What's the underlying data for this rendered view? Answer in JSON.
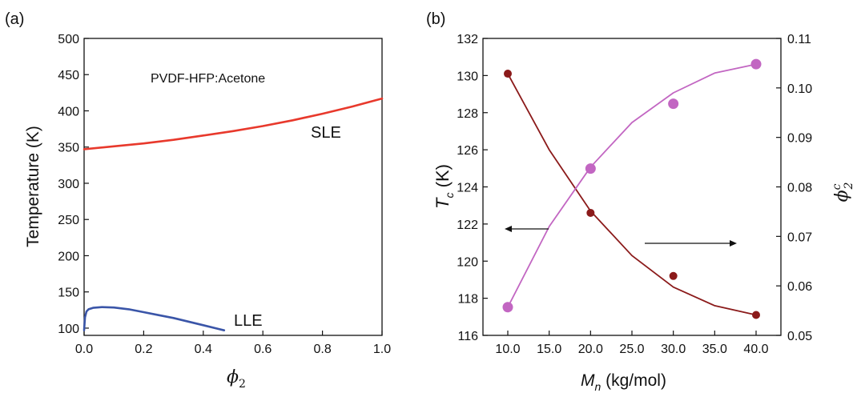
{
  "chart_data": [
    {
      "type": "line",
      "panel_label": "(a)",
      "annotation": "PVDF-HFP:Acetone",
      "xlabel": {
        "symbol": "ϕ",
        "sub": "2"
      },
      "ylabel": "Temperature (K)",
      "xlim": [
        0.0,
        1.0
      ],
      "ylim": [
        90,
        500
      ],
      "x_ticks": [
        "0.0",
        "0.2",
        "0.4",
        "0.6",
        "0.8",
        "1.0"
      ],
      "y_ticks": [
        "100",
        "150",
        "200",
        "250",
        "300",
        "350",
        "400",
        "450",
        "500"
      ],
      "colors": {
        "SLE": "#e8392c",
        "LLE": "#3a55a8"
      },
      "series": [
        {
          "name": "SLE",
          "x": [
            0.0,
            0.1,
            0.2,
            0.3,
            0.4,
            0.5,
            0.6,
            0.7,
            0.8,
            0.9,
            1.0
          ],
          "y": [
            347,
            351,
            355,
            360,
            366,
            372,
            379,
            387,
            396,
            406,
            417
          ]
        },
        {
          "name": "LLE",
          "x": [
            0.0,
            0.003,
            0.008,
            0.015,
            0.03,
            0.06,
            0.1,
            0.15,
            0.2,
            0.25,
            0.3,
            0.35,
            0.4,
            0.45,
            0.47
          ],
          "y": [
            97,
            115,
            123,
            126,
            128,
            129,
            128.5,
            126,
            122,
            118,
            114,
            109,
            104,
            99,
            97
          ]
        }
      ]
    },
    {
      "type": "scatter",
      "panel_label": "(b)",
      "xlabel": {
        "symbol": "M",
        "sub": "n",
        "unit": " (kg/mol)"
      },
      "ylabel_left": {
        "symbol": "T",
        "sub": "c",
        "unit": " (K)"
      },
      "ylabel_right": {
        "symbol": "ϕ",
        "sub": "2",
        "sup": "c"
      },
      "xlim": [
        7.0,
        43.0
      ],
      "ylim_left": [
        116,
        132
      ],
      "ylim_right": [
        0.05,
        0.11
      ],
      "x_ticks": [
        "10.0",
        "15.0",
        "20.0",
        "25.0",
        "30.0",
        "35.0",
        "40.0"
      ],
      "y_ticks_left": [
        "116",
        "118",
        "120",
        "122",
        "124",
        "126",
        "128",
        "130",
        "132"
      ],
      "y_ticks_right": [
        "0.05",
        "0.06",
        "0.07",
        "0.08",
        "0.09",
        "0.10",
        "0.11"
      ],
      "colors": {
        "Tc": "#8b1a1a",
        "phi": "#c266c2"
      },
      "series": [
        {
          "axis": "left",
          "x": [
            10,
            20,
            30,
            40
          ],
          "y": [
            130.1,
            122.6,
            119.2,
            117.1
          ],
          "fit": [
            [
              10,
              130.1
            ],
            [
              15,
              126.0
            ],
            [
              20,
              122.7
            ],
            [
              25,
              120.3
            ],
            [
              30,
              118.6
            ],
            [
              35,
              117.6
            ],
            [
              40,
              117.1
            ]
          ]
        },
        {
          "axis": "right",
          "x": [
            10,
            20,
            30,
            40
          ],
          "y": [
            0.0557,
            0.0837,
            0.0968,
            0.1048
          ],
          "fit": [
            [
              10,
              0.0557
            ],
            [
              15,
              0.072
            ],
            [
              20,
              0.084
            ],
            [
              25,
              0.093
            ],
            [
              30,
              0.099
            ],
            [
              35,
              0.103
            ],
            [
              40,
              0.1048
            ]
          ]
        }
      ]
    }
  ]
}
